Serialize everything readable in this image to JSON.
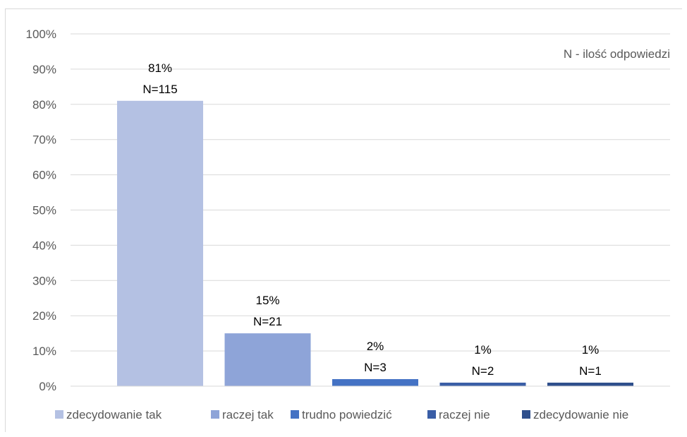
{
  "chart_data": {
    "type": "bar",
    "categories": [
      "zdecydowanie tak",
      "raczej tak",
      "trudno powiedzić",
      "raczej nie",
      "zdecydowanie nie"
    ],
    "values": [
      81,
      15,
      2,
      1,
      1
    ],
    "counts": [
      "N=115",
      "N=21",
      "N=3",
      "N=2",
      "N=1"
    ],
    "value_labels": [
      "81%",
      "15%",
      "2%",
      "1%",
      "1%"
    ],
    "colors": [
      "#b4c1e3",
      "#8ea4d8",
      "#4472c4",
      "#3a5ea6",
      "#2e4f8c"
    ],
    "ylim": [
      0,
      100
    ],
    "yticks": [
      0,
      10,
      20,
      30,
      40,
      50,
      60,
      70,
      80,
      90,
      100
    ],
    "ytick_labels": [
      "0%",
      "10%",
      "20%",
      "30%",
      "40%",
      "50%",
      "60%",
      "70%",
      "80%",
      "90%",
      "100%"
    ],
    "annotation": "N - ilość odpowiedzi",
    "grid": true,
    "legend_position": "bottom"
  }
}
